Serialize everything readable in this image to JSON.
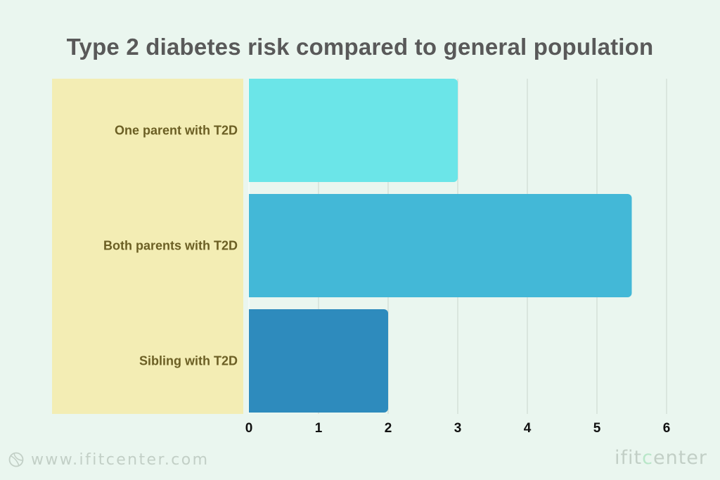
{
  "chart_data": {
    "type": "bar",
    "orientation": "horizontal",
    "title": "Type 2 diabetes risk compared to general population",
    "categories": [
      "One parent with T2D",
      "Both parents with T2D",
      "Sibling with T2D"
    ],
    "values": [
      3,
      5.5,
      2
    ],
    "xlim": [
      0,
      6
    ],
    "xticks": [
      0,
      1,
      2,
      3,
      4,
      5,
      6
    ],
    "xlabel": "",
    "ylabel": "",
    "grid": true,
    "colors": [
      "#6be5e8",
      "#43b8d7",
      "#2e8bbd"
    ],
    "label_panel_color": "#f3edb4",
    "label_color": "#6b5f24"
  },
  "footer": {
    "website": "www.ifitcenter.com",
    "brand_prefix": "ifit",
    "brand_mid": "c",
    "brand_suffix": "enter"
  },
  "colors": {
    "background": "#eaf6ef",
    "title": "#595959",
    "watermark": "#c2cfc6",
    "brand_accent": "#b8e6c8"
  },
  "icons": {
    "footer_logo": "ball-icon"
  }
}
